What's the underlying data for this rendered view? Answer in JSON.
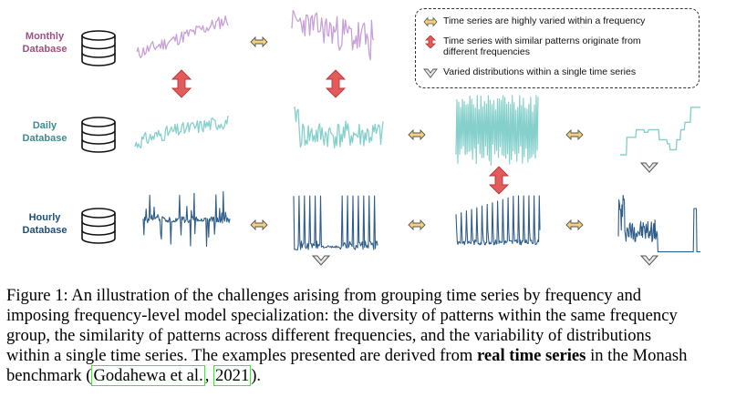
{
  "databases": [
    {
      "id": "monthly",
      "line1": "Monthly",
      "line2": "Database",
      "color": "#a0507e"
    },
    {
      "id": "daily",
      "line1": "Daily",
      "line2": "Database",
      "color": "#3f8a90"
    },
    {
      "id": "hourly",
      "line1": "Hourly",
      "line2": "Database",
      "color": "#1f4e79"
    }
  ],
  "legend": {
    "item1": "Time series are highly varied within a frequency",
    "item2_line1": "Time series with similar patterns originate from",
    "item2_line2": "different frequencies",
    "item3": "Varied distributions within a single time series"
  },
  "colors": {
    "monthly_line": "#c7a0d8",
    "daily_line": "#86d0cc",
    "hourly_line": "#2f5d8a",
    "swap_icon_fill": "#f6d07a",
    "vertical_arrow_fill": "#e45b5b",
    "chevron_fill": "#e8e8e8"
  },
  "icons": {
    "horizontal": "double-arrow-horizontal-icon",
    "vertical": "double-arrow-vertical-icon",
    "chevron": "chevron-down-icon",
    "database": "database-icon"
  },
  "caption": {
    "line1": "Figure 1:  An illustration of the challenges arising from grouping time series by frequency and",
    "line2": "imposing frequency-level model specialization: the diversity of patterns within the same frequency",
    "line3": "group, the similarity of patterns across different frequencies, and the variability of distributions",
    "line4_a": "within a single time series. The examples presented are derived from ",
    "line4_bold": "real time series",
    "line4_b": " in the Monash",
    "line5_a": "benchmark (",
    "cite1": "Godahewa et al.",
    "line5_sep": ", ",
    "cite2": "2021",
    "line5_b": ")."
  }
}
